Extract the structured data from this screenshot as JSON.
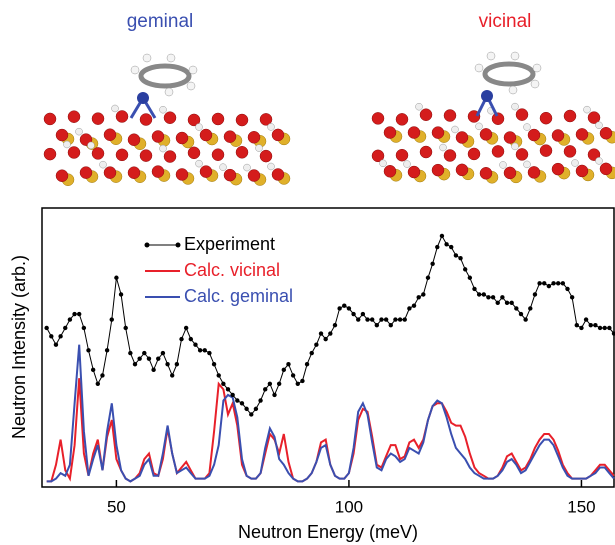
{
  "chart_data": {
    "type": "line",
    "structures": [
      {
        "label": "geminal",
        "color": "#3a4fb0"
      },
      {
        "label": "vicinal",
        "color": "#e8202a"
      }
    ],
    "xlabel": "Neutron Energy (meV)",
    "ylabel": "Neutron Intensity (arb.)",
    "xlim": [
      34,
      157
    ],
    "ylim": [
      0,
      100
    ],
    "xticks": [
      50,
      100,
      150
    ],
    "x": [
      35,
      36,
      37,
      38,
      39,
      40,
      41,
      42,
      43,
      44,
      45,
      46,
      47,
      48,
      49,
      50,
      51,
      52,
      53,
      54,
      55,
      56,
      57,
      58,
      59,
      60,
      61,
      62,
      63,
      64,
      65,
      66,
      67,
      68,
      69,
      70,
      71,
      72,
      73,
      74,
      75,
      76,
      77,
      78,
      79,
      80,
      81,
      82,
      83,
      84,
      85,
      86,
      87,
      88,
      89,
      90,
      91,
      92,
      93,
      94,
      95,
      96,
      97,
      98,
      99,
      100,
      101,
      102,
      103,
      104,
      105,
      106,
      107,
      108,
      109,
      110,
      111,
      112,
      113,
      114,
      115,
      116,
      117,
      118,
      119,
      120,
      121,
      122,
      123,
      124,
      125,
      126,
      127,
      128,
      129,
      130,
      131,
      132,
      133,
      134,
      135,
      136,
      137,
      138,
      139,
      140,
      141,
      142,
      143,
      144,
      145,
      146,
      147,
      148,
      149,
      150,
      151,
      152,
      153,
      154,
      155,
      156,
      157
    ],
    "series": [
      {
        "name": "Experiment",
        "color": "#000000",
        "markers": true,
        "values": [
          57,
          54,
          51,
          54,
          57,
          60,
          62,
          62,
          57,
          49,
          42,
          37,
          40,
          49,
          60,
          75,
          69,
          57,
          48,
          44,
          46,
          48,
          46,
          42,
          46,
          48,
          44,
          40,
          44,
          53,
          57,
          53,
          51,
          49,
          49,
          48,
          44,
          40,
          37,
          35,
          33,
          31,
          30,
          28,
          26,
          28,
          31,
          35,
          37,
          33,
          37,
          42,
          44,
          40,
          37,
          38,
          44,
          48,
          51,
          55,
          53,
          55,
          58,
          64,
          65,
          64,
          62,
          60,
          62,
          60,
          60,
          58,
          60,
          60,
          58,
          60,
          60,
          60,
          64,
          65,
          68,
          69,
          75,
          80,
          86,
          90,
          87,
          86,
          83,
          82,
          78,
          75,
          71,
          69,
          69,
          68,
          68,
          66,
          68,
          66,
          66,
          64,
          62,
          60,
          64,
          69,
          73,
          73,
          72,
          73,
          73,
          73,
          71,
          68,
          58,
          57,
          60,
          58,
          58,
          57,
          57,
          57,
          55
        ]
      },
      {
        "name": "Calc. vicinal",
        "color": "#e8202a",
        "markers": false,
        "values": [
          2,
          2,
          8,
          17,
          6,
          3,
          15,
          39,
          12,
          4,
          12,
          17,
          6,
          18,
          24,
          10,
          6,
          3,
          2,
          3,
          5,
          10,
          12,
          5,
          4,
          10,
          21,
          12,
          5,
          7,
          9,
          6,
          3,
          3,
          3,
          5,
          20,
          37,
          35,
          26,
          30,
          22,
          8,
          4,
          3,
          3,
          5,
          12,
          19,
          17,
          12,
          19,
          9,
          3,
          2,
          2,
          3,
          5,
          9,
          16,
          17,
          8,
          4,
          3,
          3,
          5,
          12,
          24,
          28,
          27,
          18,
          8,
          7,
          11,
          15,
          15,
          10,
          11,
          16,
          17,
          14,
          17,
          24,
          29,
          30,
          30,
          27,
          23,
          22,
          22,
          18,
          12,
          7,
          5,
          4,
          3,
          3,
          4,
          7,
          11,
          12,
          9,
          6,
          7,
          10,
          14,
          17,
          19,
          19,
          17,
          13,
          8,
          5,
          3,
          3,
          3,
          3,
          4,
          6,
          8,
          8,
          6,
          4
        ]
      },
      {
        "name": "Calc. geminal",
        "color": "#3a4fb0",
        "markers": false,
        "values": [
          2,
          2,
          3,
          5,
          4,
          8,
          30,
          51,
          20,
          4,
          10,
          15,
          6,
          20,
          30,
          15,
          6,
          3,
          2,
          3,
          4,
          8,
          10,
          4,
          4,
          12,
          22,
          12,
          5,
          6,
          7,
          5,
          3,
          3,
          3,
          4,
          8,
          15,
          31,
          33,
          32,
          25,
          10,
          4,
          3,
          3,
          5,
          14,
          21,
          18,
          10,
          8,
          5,
          3,
          2,
          2,
          3,
          5,
          9,
          14,
          15,
          8,
          4,
          3,
          3,
          5,
          14,
          27,
          30,
          26,
          16,
          7,
          6,
          10,
          12,
          11,
          9,
          10,
          14,
          13,
          12,
          16,
          24,
          29,
          31,
          30,
          25,
          19,
          14,
          12,
          10,
          7,
          5,
          4,
          3,
          3,
          3,
          4,
          6,
          9,
          10,
          8,
          5,
          6,
          9,
          12,
          15,
          17,
          17,
          15,
          11,
          7,
          4,
          3,
          3,
          3,
          3,
          4,
          5,
          7,
          7,
          5,
          3
        ]
      }
    ]
  }
}
